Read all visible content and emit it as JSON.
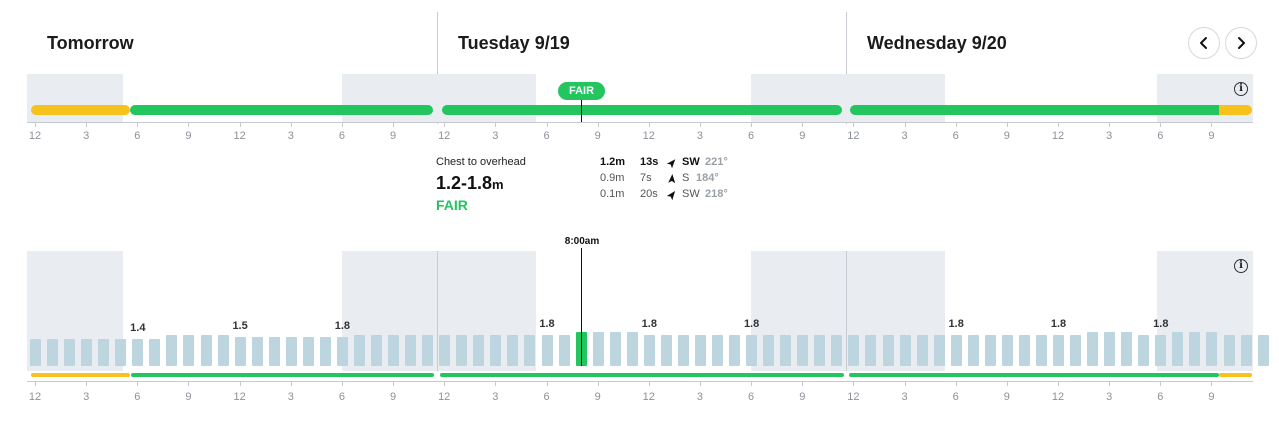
{
  "days": [
    {
      "title": "Tomorrow"
    },
    {
      "title": "Tuesday 9/19"
    },
    {
      "title": "Wednesday 9/20"
    }
  ],
  "nav": {
    "prev_icon": "chevron-left-icon",
    "next_icon": "chevron-right-icon"
  },
  "colors": {
    "fair": "#22c55e",
    "poor_to_fair": "#f8c21c",
    "swell_bar": "#bcd5df",
    "night_shade": "#e9edf2"
  },
  "rating_chart": {
    "badge": "FAIR",
    "info_icon": "info-icon",
    "segments": [
      {
        "rating": "poor_to_fair",
        "from_hour": 0,
        "to_hour": 6
      },
      {
        "rating": "fair",
        "from_hour": 6,
        "to_hour": 24
      },
      {
        "rating": "fair",
        "from_hour": 24,
        "to_hour": 48
      },
      {
        "rating": "fair",
        "from_hour": 48,
        "to_hour": 69
      },
      {
        "rating": "poor_to_fair",
        "from_hour": 69,
        "to_hour": 72
      }
    ]
  },
  "tick_labels": [
    "12",
    "3",
    "6",
    "9",
    "12",
    "3",
    "6",
    "9",
    "12",
    "3",
    "6",
    "9",
    "12",
    "3",
    "6",
    "9",
    "12",
    "3",
    "6",
    "9",
    "12",
    "3",
    "6",
    "9"
  ],
  "summary": {
    "description": "Chest to overhead",
    "range": "1.2-1.8",
    "unit": "m",
    "rating": "FAIR",
    "swells": [
      {
        "height": "1.2m",
        "period": "13s",
        "direction": "SW",
        "degrees": "221°",
        "arrow_rotation": 221,
        "primary": true
      },
      {
        "height": "0.9m",
        "period": "7s",
        "direction": "S",
        "degrees": "184°",
        "arrow_rotation": 184,
        "primary": false
      },
      {
        "height": "0.1m",
        "period": "20s",
        "direction": "SW",
        "degrees": "218°",
        "arrow_rotation": 218,
        "primary": false
      }
    ]
  },
  "surf_chart": {
    "selected_time": "8:00am",
    "selected_index": 32,
    "info_icon": "info-icon",
    "bar_values": [
      1.2,
      1.2,
      1.2,
      1.2,
      1.2,
      1.2,
      1.2,
      1.2,
      1.4,
      1.4,
      1.4,
      1.4,
      1.3,
      1.3,
      1.3,
      1.3,
      1.3,
      1.3,
      1.3,
      1.4,
      1.4,
      1.4,
      1.4,
      1.4,
      1.4,
      1.4,
      1.4,
      1.4,
      1.4,
      1.4,
      1.4,
      1.4,
      1.5,
      1.5,
      1.5,
      1.5,
      1.4,
      1.4,
      1.4,
      1.4,
      1.4,
      1.4,
      1.4,
      1.4,
      1.4,
      1.4,
      1.4,
      1.4,
      1.4,
      1.4,
      1.4,
      1.4,
      1.4,
      1.4,
      1.4,
      1.4,
      1.4,
      1.4,
      1.4,
      1.4,
      1.4,
      1.4,
      1.5,
      1.5,
      1.5,
      1.4,
      1.4,
      1.5,
      1.5,
      1.5,
      1.4,
      1.4,
      1.4
    ],
    "labels": [
      {
        "index": 6,
        "text": "1.4"
      },
      {
        "index": 12,
        "text": "1.5"
      },
      {
        "index": 18,
        "text": "1.8"
      },
      {
        "index": 30,
        "text": "1.8"
      },
      {
        "index": 36,
        "text": "1.8"
      },
      {
        "index": 42,
        "text": "1.8"
      },
      {
        "index": 54,
        "text": "1.8"
      },
      {
        "index": 60,
        "text": "1.8"
      },
      {
        "index": 66,
        "text": "1.8"
      }
    ]
  }
}
